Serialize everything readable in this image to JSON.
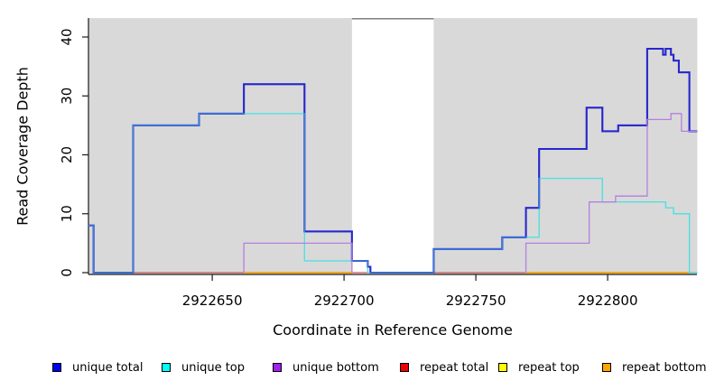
{
  "chart_data": {
    "type": "line",
    "subtype": "step-coverage",
    "title": "",
    "xlabel": "Coordinate in Reference Genome",
    "ylabel": "Read Coverage Depth",
    "xlim": [
      2922603,
      2922834
    ],
    "ylim": [
      0,
      43
    ],
    "x_ticks": [
      "2922650",
      "2922700",
      "2922750",
      "2922800"
    ],
    "x_tick_values": [
      2922650,
      2922700,
      2922750,
      2922800
    ],
    "y_ticks": [
      "0",
      "10",
      "20",
      "30",
      "40"
    ],
    "y_tick_values": [
      0,
      10,
      20,
      30,
      40
    ],
    "grid": false,
    "panel_color": "#d9d9d9",
    "gap_region": {
      "x_start": 2922703,
      "x_end": 2922734
    },
    "shaded_regions": [
      [
        2922603,
        2922703
      ],
      [
        2922734,
        2922834
      ]
    ],
    "legend_position": "bottom",
    "series": [
      {
        "name": "unique total",
        "color": "#2626ce",
        "width": 2,
        "steps": [
          [
            2922603,
            8
          ],
          [
            2922605,
            0
          ],
          [
            2922620,
            25
          ],
          [
            2922645,
            27
          ],
          [
            2922662,
            32
          ],
          [
            2922685,
            7
          ],
          [
            2922703,
            2
          ],
          [
            2922709,
            1
          ],
          [
            2922710,
            0
          ],
          [
            2922734,
            4
          ],
          [
            2922760,
            6
          ],
          [
            2922769,
            11
          ],
          [
            2922774,
            21
          ],
          [
            2922792,
            28
          ],
          [
            2922798,
            24
          ],
          [
            2922804,
            25
          ],
          [
            2922815,
            38
          ],
          [
            2922821,
            37
          ],
          [
            2922822,
            38
          ],
          [
            2922824,
            37
          ],
          [
            2922825,
            36
          ],
          [
            2922827,
            34
          ],
          [
            2922831,
            24
          ]
        ],
        "x_end": 2922834
      },
      {
        "name": "unique top",
        "color": "#53dfdf",
        "width": 1.4,
        "steps": [
          [
            2922603,
            8
          ],
          [
            2922605,
            0
          ],
          [
            2922620,
            25
          ],
          [
            2922645,
            27
          ],
          [
            2922685,
            2
          ],
          [
            2922709,
            0
          ],
          [
            2922734,
            4
          ],
          [
            2922760,
            6
          ],
          [
            2922774,
            16
          ],
          [
            2922798,
            12
          ],
          [
            2922822,
            11
          ],
          [
            2922825,
            10
          ],
          [
            2922831,
            0
          ]
        ],
        "x_end": 2922834
      },
      {
        "name": "unique bottom",
        "color": "#b57fde",
        "width": 1.3,
        "skip_zero": true,
        "steps": [
          [
            2922603,
            0
          ],
          [
            2922662,
            5
          ],
          [
            2922703,
            0
          ],
          [
            2922769,
            5
          ],
          [
            2922793,
            12
          ],
          [
            2922803,
            13
          ],
          [
            2922815,
            26
          ],
          [
            2922824,
            27
          ],
          [
            2922828,
            24
          ]
        ],
        "x_end": 2922834
      },
      {
        "name": "repeat total",
        "color": "#cc5555",
        "width": 1.2,
        "steps": [
          [
            2922620,
            0
          ]
        ],
        "x_end": 2922834
      },
      {
        "name": "repeat top",
        "color": "#e8d44d",
        "width": 1.4,
        "zero_segments": [
          [
            2922662,
            2922703
          ],
          [
            2922769,
            2922831
          ]
        ]
      },
      {
        "name": "repeat bottom",
        "color": "#f59b00",
        "width": 1.6,
        "zero_segments": [
          [
            2922662,
            2922703
          ],
          [
            2922769,
            2922831
          ]
        ]
      }
    ],
    "legend": [
      {
        "label": "unique total",
        "color": "#0000ee"
      },
      {
        "label": "unique top",
        "color": "#00ffff"
      },
      {
        "label": "unique bottom",
        "color": "#a020f0"
      },
      {
        "label": "repeat total",
        "color": "#ee0000"
      },
      {
        "label": "repeat top",
        "color": "#ffff00"
      },
      {
        "label": "repeat bottom",
        "color": "#ffa500"
      }
    ]
  }
}
